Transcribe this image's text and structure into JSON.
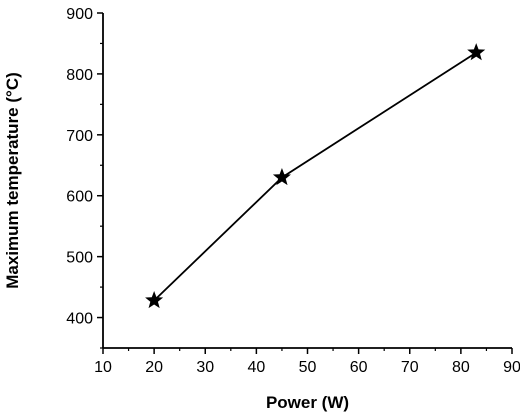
{
  "chart_data": {
    "type": "line",
    "title": "",
    "xlabel": "Power (W)",
    "ylabel": "Maximum temperature (°C)",
    "xlim": [
      10,
      90
    ],
    "ylim": [
      350,
      900
    ],
    "xticks": [
      "10",
      "20",
      "30",
      "40",
      "50",
      "60",
      "70",
      "80",
      "90"
    ],
    "yticks": [
      "400",
      "500",
      "600",
      "700",
      "800",
      "900"
    ],
    "grid": false,
    "legend": "none",
    "marker": "star",
    "series": [
      {
        "x": [
          20,
          45,
          83
        ],
        "y": [
          428,
          630,
          835
        ]
      }
    ],
    "colors": {
      "line": "#000000",
      "marker": "#000000"
    }
  }
}
